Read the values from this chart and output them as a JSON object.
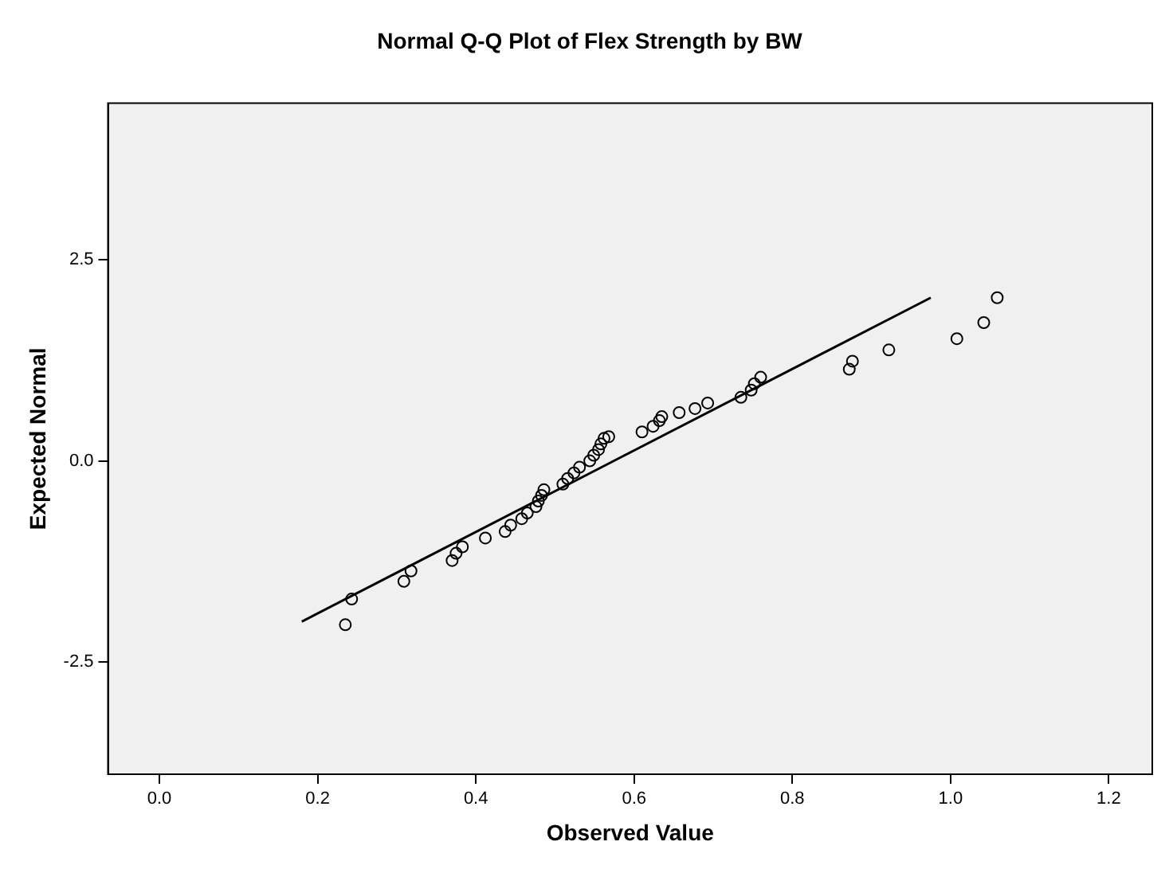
{
  "chart_data": {
    "type": "scatter",
    "title": "Normal Q-Q Plot of Flex Strength by BW",
    "xlabel": "Observed Value",
    "ylabel": "Expected Normal",
    "xlim": [
      -0.065,
      1.255
    ],
    "ylim": [
      -3.9,
      4.45
    ],
    "xticks": [
      {
        "value": 0,
        "label": "0.0"
      },
      {
        "value": 0.2,
        "label": "0.2"
      },
      {
        "value": 0.4,
        "label": "0.4"
      },
      {
        "value": 0.6,
        "label": "0.6"
      },
      {
        "value": 0.8,
        "label": "0.8"
      },
      {
        "value": 1,
        "label": "1.0"
      },
      {
        "value": 1.2,
        "label": "1.2"
      }
    ],
    "yticks": [
      {
        "value": -2.5,
        "label": "-2.5"
      },
      {
        "value": 0,
        "label": "0.0"
      },
      {
        "value": 2.5,
        "label": "2.5"
      }
    ],
    "grid": false,
    "legend": false,
    "marker": "circle",
    "series": [
      {
        "color": "#000000",
        "x": [
          0.235,
          0.243,
          0.309,
          0.318,
          0.37,
          0.375,
          0.383,
          0.412,
          0.437,
          0.444,
          0.458,
          0.465,
          0.476,
          0.479,
          0.483,
          0.486,
          0.51,
          0.516,
          0.524,
          0.531,
          0.544,
          0.549,
          0.555,
          0.558,
          0.562,
          0.568,
          0.61,
          0.624,
          0.632,
          0.635,
          0.657,
          0.677,
          0.693,
          0.735,
          0.748,
          0.752,
          0.76,
          0.872,
          0.876,
          0.922,
          1.008,
          1.042,
          1.059
        ],
        "values": [
          -2.04,
          -1.72,
          -1.5,
          -1.37,
          -1.24,
          -1.15,
          -1.07,
          -0.96,
          -0.88,
          -0.8,
          -0.72,
          -0.65,
          -0.57,
          -0.5,
          -0.43,
          -0.36,
          -0.29,
          -0.22,
          -0.15,
          -0.08,
          0,
          0.07,
          0.14,
          0.21,
          0.28,
          0.3,
          0.36,
          0.43,
          0.5,
          0.55,
          0.6,
          0.65,
          0.72,
          0.79,
          0.88,
          0.96,
          1.04,
          1.14,
          1.24,
          1.38,
          1.52,
          1.72,
          2.03
        ]
      },
      {
        "type": "line",
        "color": "#000000",
        "marker": "none",
        "line_style": "solid",
        "x": [
          0.18,
          0.975
        ],
        "values": [
          -2.0,
          2.03
        ]
      }
    ]
  }
}
